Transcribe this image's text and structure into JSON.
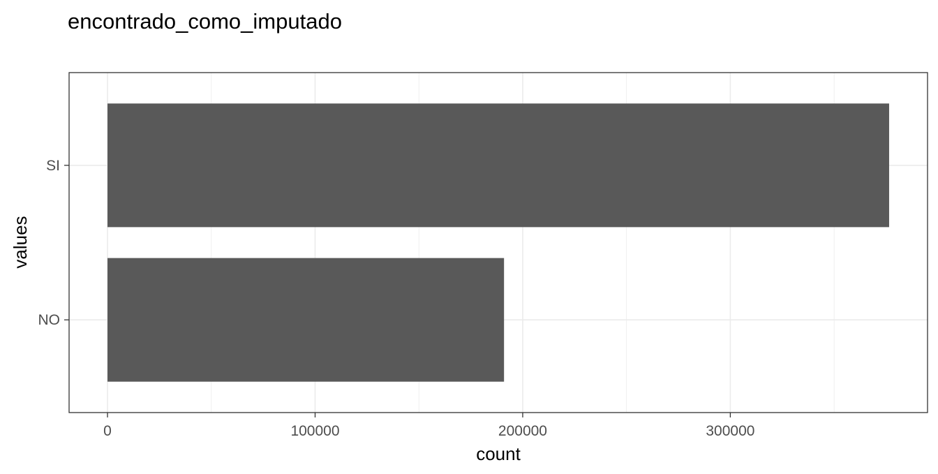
{
  "chart_data": {
    "type": "bar",
    "orientation": "horizontal",
    "title": "encontrado_como_imputado",
    "xlabel": "count",
    "ylabel": "values",
    "categories": [
      "SI",
      "NO"
    ],
    "values": [
      376500,
      191000
    ],
    "xlim": [
      -18500,
      395000
    ],
    "xticks": [
      0,
      100000,
      200000,
      300000
    ],
    "xtick_labels": [
      "0",
      "100000",
      "200000",
      "300000"
    ],
    "grid": true,
    "legend": "none",
    "colors": {
      "bar": "#595959",
      "grid": "#ebebeb",
      "panel_border": "#333333"
    }
  }
}
